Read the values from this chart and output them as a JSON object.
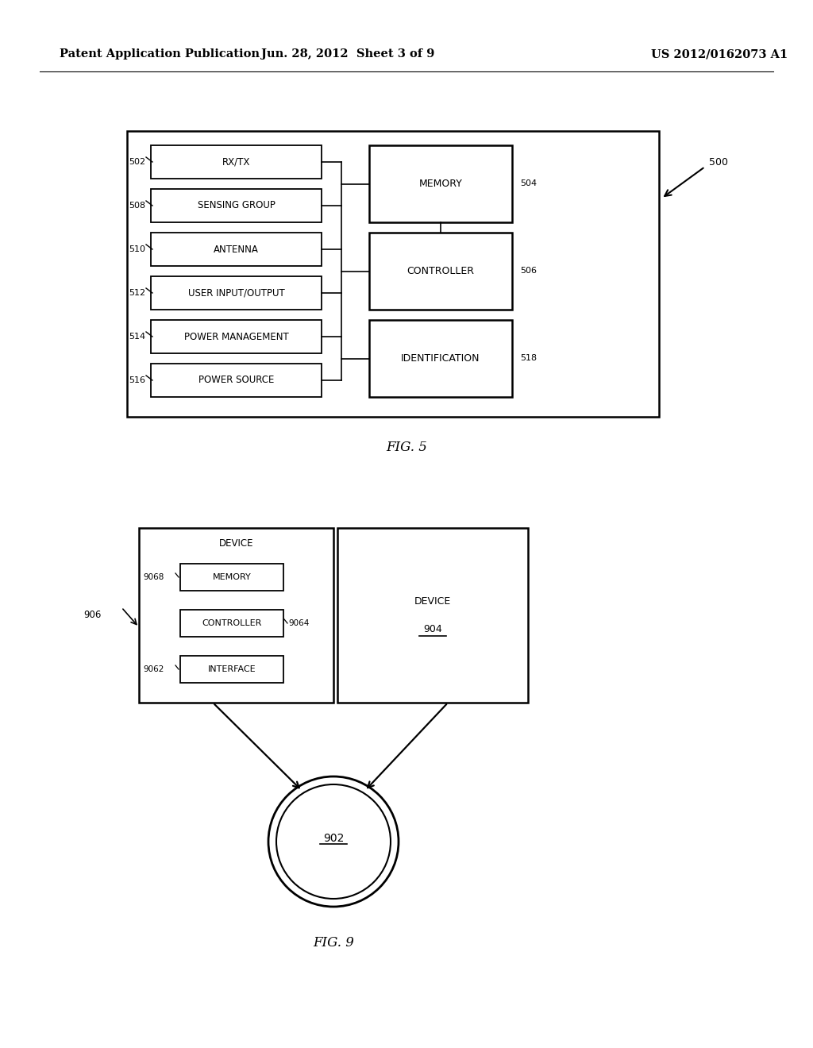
{
  "bg_color": "#ffffff",
  "header_left": "Patent Application Publication",
  "header_center": "Jun. 28, 2012  Sheet 3 of 9",
  "header_right": "US 2012/0162073 A1",
  "fig5_caption": "FIG. 5",
  "fig9_caption": "FIG. 9",
  "fig5_left_boxes": [
    {
      "label": "RX/TX",
      "ref": "502"
    },
    {
      "label": "SENSING GROUP",
      "ref": "508"
    },
    {
      "label": "ANTENNA",
      "ref": "510"
    },
    {
      "label": "USER INPUT/OUTPUT",
      "ref": "512"
    },
    {
      "label": "POWER MANAGEMENT",
      "ref": "514"
    },
    {
      "label": "POWER SOURCE",
      "ref": "516"
    }
  ],
  "fig5_right_boxes": [
    {
      "label": "MEMORY",
      "ref": "504"
    },
    {
      "label": "CONTROLLER",
      "ref": "506"
    },
    {
      "label": "IDENTIFICATION",
      "ref": "518"
    }
  ],
  "fig5_system_ref": "500",
  "fig9_device906_label": "DEVICE",
  "fig9_device904_label": "DEVICE",
  "fig9_ref_906": "906",
  "fig9_ref_904": "904",
  "fig9_ref_902": "902",
  "fig9_ref_9068": "9068",
  "fig9_ref_9064": "9064",
  "fig9_ref_9062": "9062",
  "fig9_inner_labels": [
    "MEMORY",
    "CONTROLLER",
    "INTERFACE"
  ]
}
